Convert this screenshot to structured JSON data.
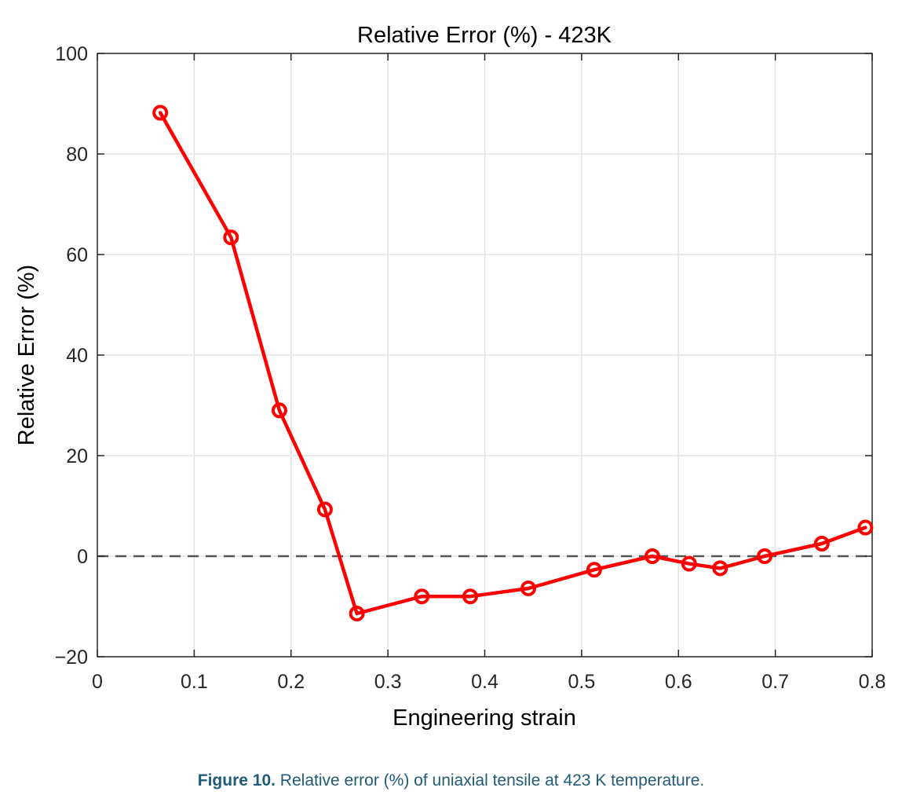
{
  "chart_data": {
    "type": "line",
    "title": "Relative Error (%) - 423K",
    "xlabel": "Engineering strain",
    "ylabel": "Relative Error (%)",
    "xlim": [
      0,
      0.8
    ],
    "ylim": [
      -20,
      100
    ],
    "xticks": [
      0,
      0.1,
      0.2,
      0.3,
      0.4,
      0.5,
      0.6,
      0.7,
      0.8
    ],
    "xtick_labels": [
      "0",
      "0.1",
      "0.2",
      "0.3",
      "0.4",
      "0.5",
      "0.6",
      "0.7",
      "0.8"
    ],
    "yticks": [
      -20,
      0,
      20,
      40,
      60,
      80,
      100
    ],
    "ytick_labels": [
      "−20",
      "0",
      "20",
      "40",
      "60",
      "80",
      "100"
    ],
    "grid": true,
    "reference_line": {
      "y": 0,
      "style": "dashed",
      "color": "#555555"
    },
    "series": [
      {
        "color": "#ff0000",
        "marker": "circle",
        "x": [
          0.065,
          0.138,
          0.188,
          0.235,
          0.268,
          0.335,
          0.385,
          0.445,
          0.513,
          0.573,
          0.611,
          0.643,
          0.689,
          0.748,
          0.793
        ],
        "y": [
          88.2,
          63.4,
          29.0,
          9.3,
          -11.4,
          -8.0,
          -8.0,
          -6.4,
          -2.7,
          0.0,
          -1.5,
          -2.4,
          0.0,
          2.5,
          5.7
        ]
      }
    ]
  },
  "caption": {
    "label": "Figure 10.",
    "text": " Relative error (%) of uniaxial tensile at 423 K temperature."
  }
}
